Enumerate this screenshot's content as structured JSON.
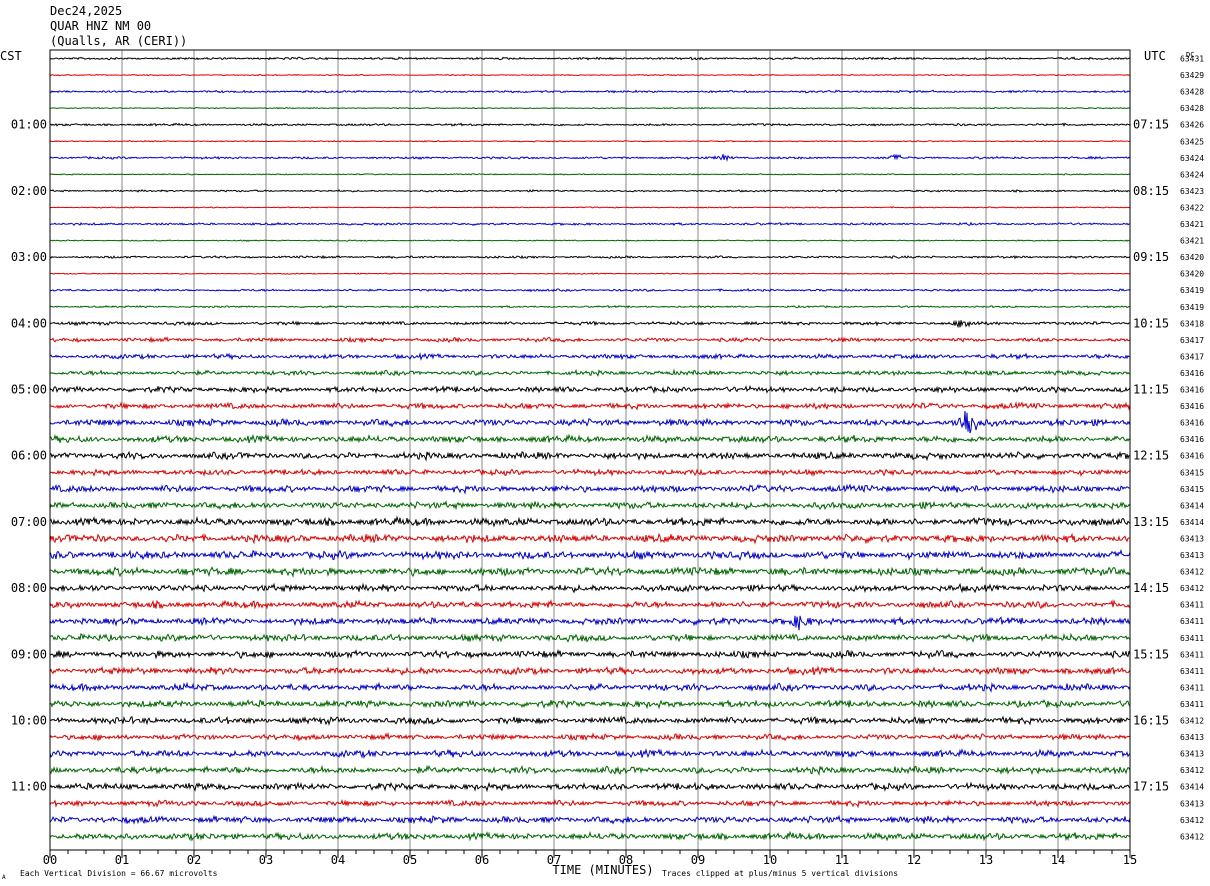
{
  "header": {
    "date": "Dec24,2025",
    "station": "QUAR HNZ NM 00",
    "location": "(Qualls, AR (CERI))"
  },
  "left_zone_label": "CST",
  "right_zone_label": "UTC",
  "dc_label": "DC",
  "footer": {
    "xlabel": "TIME (MINUTES)",
    "scale_note": "Each Vertical Division =   66.67 microvolts",
    "clip_note": "Traces clipped at plus/minus 5 vertical divisions",
    "corner_mark": "A"
  },
  "chart_data": {
    "type": "line",
    "title": "QUAR HNZ NM 00",
    "xlabel": "TIME (MINUTES)",
    "xlim": [
      0,
      15
    ],
    "x_ticks": [
      "00",
      "01",
      "02",
      "03",
      "04",
      "05",
      "06",
      "07",
      "08",
      "09",
      "10",
      "11",
      "12",
      "13",
      "14",
      "15"
    ],
    "left_hour_labels": [
      "01:00",
      "02:00",
      "03:00",
      "04:00",
      "05:00",
      "06:00",
      "07:00",
      "08:00",
      "09:00",
      "10:00",
      "11:00"
    ],
    "right_hour_labels": [
      "07:15",
      "08:15",
      "09:15",
      "10:15",
      "11:15",
      "12:15",
      "13:15",
      "14:15",
      "15:15",
      "16:15",
      "17:15"
    ],
    "trace_colors": [
      "#000000",
      "#dd0000",
      "#0000cc",
      "#006600"
    ],
    "dc_offsets": [
      63431,
      63429,
      63428,
      63428,
      63426,
      63425,
      63424,
      63424,
      63423,
      63422,
      63421,
      63421,
      63420,
      63420,
      63419,
      63419,
      63418,
      63417,
      63417,
      63416,
      63416,
      63416,
      63416,
      63416,
      63416,
      63415,
      63415,
      63414,
      63414,
      63413,
      63413,
      63412,
      63412,
      63411,
      63411,
      63411,
      63411,
      63411,
      63411,
      63411,
      63412,
      63413,
      63413,
      63412,
      63414,
      63413,
      63412,
      63412
    ],
    "trace_amplitude": [
      1,
      0.5,
      1,
      0.5,
      1,
      0.5,
      1,
      0.5,
      0.8,
      0.5,
      1,
      0.5,
      1,
      0.5,
      1,
      0.8,
      1.5,
      1.8,
      2,
      2,
      2.5,
      2.5,
      3,
      3,
      3,
      2.5,
      3,
      3,
      3.5,
      3.5,
      3.5,
      3.5,
      3,
      3,
      3,
      3,
      3,
      3,
      3,
      3,
      3,
      2.5,
      3,
      3,
      3,
      2.5,
      3,
      3
    ],
    "events": [
      {
        "trace": 6,
        "minute": 9.35,
        "amplitude": 3
      },
      {
        "trace": 6,
        "minute": 11.75,
        "amplitude": 3
      },
      {
        "trace": 16,
        "minute": 12.7,
        "amplitude": 6
      },
      {
        "trace": 22,
        "minute": 12.75,
        "amplitude": 22
      },
      {
        "trace": 34,
        "minute": 10.4,
        "amplitude": 7
      }
    ],
    "grid": true
  }
}
